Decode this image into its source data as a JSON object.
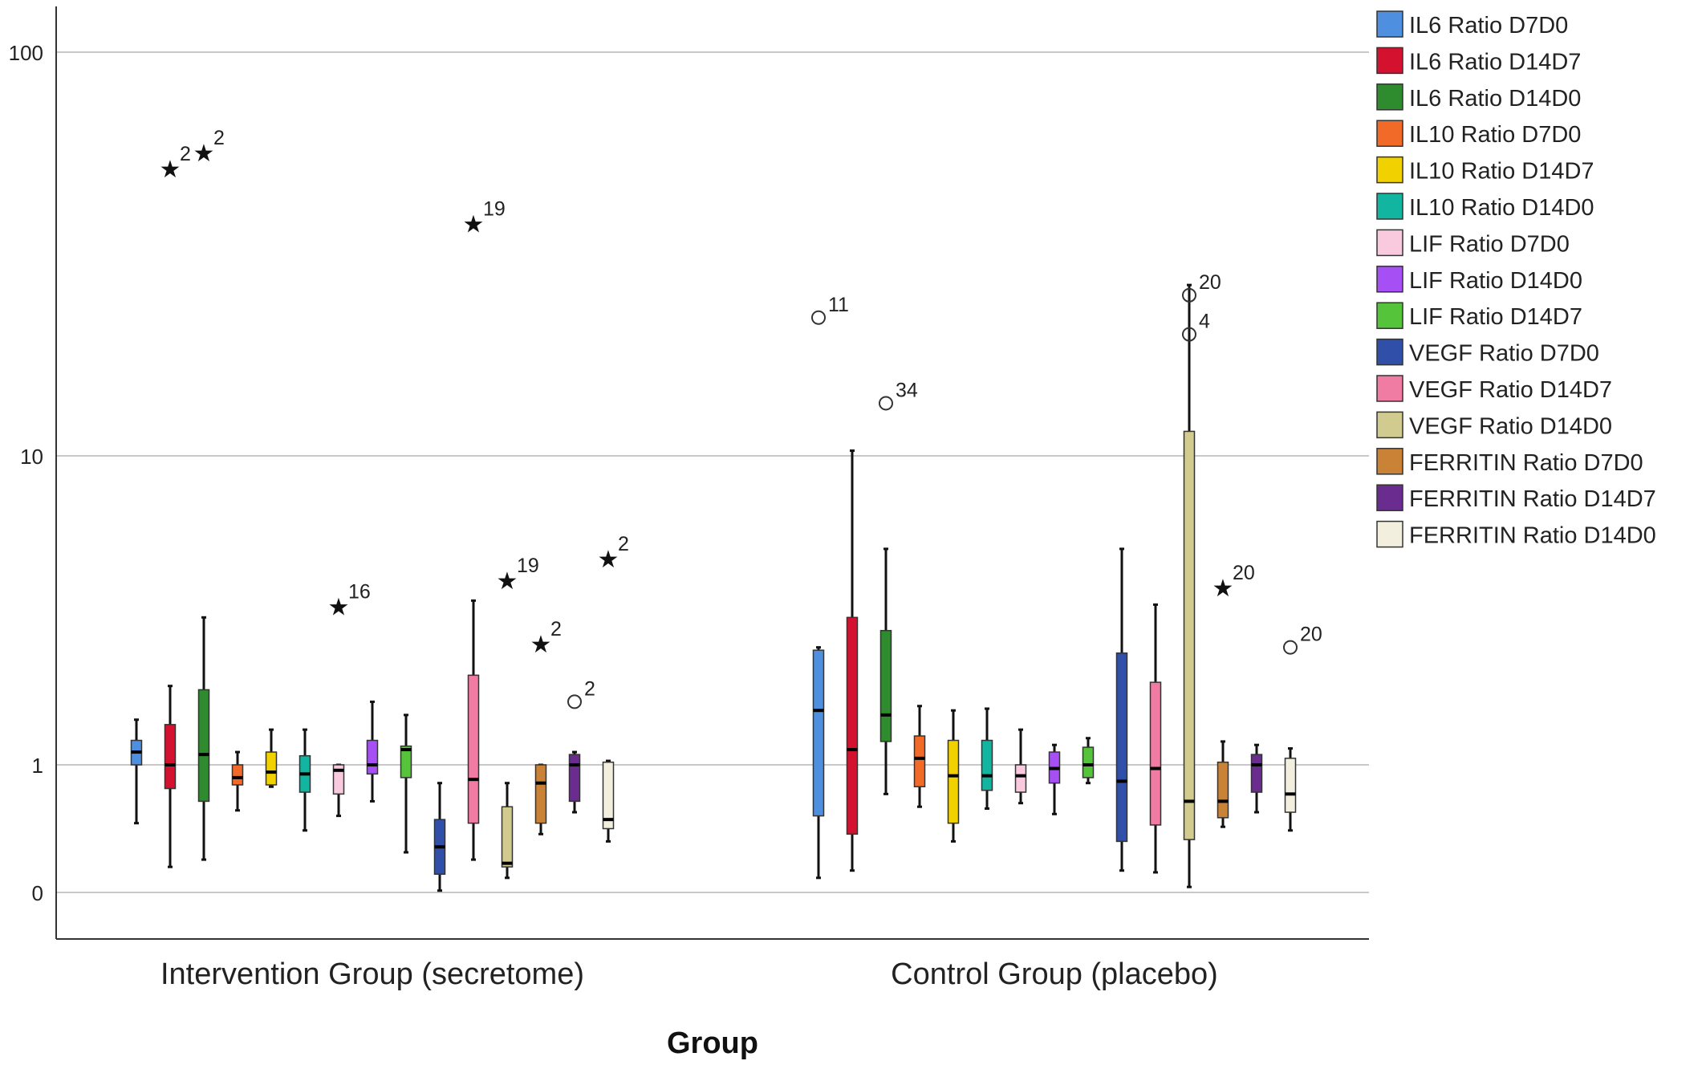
{
  "chart_data": {
    "type": "boxplot",
    "xlabel": "Group",
    "ylabel": "",
    "y_scale": "custom-log",
    "y_ticks": [
      {
        "label": "100",
        "value": 100
      },
      {
        "label": "10",
        "value": 10
      },
      {
        "label": "1",
        "value": 1
      },
      {
        "label": "0",
        "value": 0.3
      }
    ],
    "grid": "horizontal",
    "legend_placement": "right",
    "categories": [
      "Intervention Group (secretome)",
      "Control Group (placebo)"
    ],
    "series": [
      {
        "name": "IL6 Ratio D7D0",
        "color": "#4f8fe0",
        "boxes": [
          {
            "whisker_low": 0.68,
            "q1": 1.0,
            "median": 1.1,
            "q3": 1.2,
            "whisker_high": 1.4,
            "outliers": []
          },
          {
            "whisker_low": 0.38,
            "q1": 0.72,
            "median": 1.5,
            "q3": 2.35,
            "whisker_high": 2.4,
            "outliers": [
              {
                "value": 22,
                "marker": "circle",
                "label": "11"
              }
            ]
          }
        ]
      },
      {
        "name": "IL6 Ratio D14D7",
        "color": "#d4112f",
        "boxes": [
          {
            "whisker_low": 0.44,
            "q1": 0.87,
            "median": 1.0,
            "q3": 1.35,
            "whisker_high": 1.8,
            "outliers": [
              {
                "value": 52,
                "marker": "star",
                "label": "2"
              }
            ]
          },
          {
            "whisker_low": 0.42,
            "q1": 0.62,
            "median": 1.12,
            "q3": 3.0,
            "whisker_high": 10.3,
            "outliers": []
          }
        ]
      },
      {
        "name": "IL6 Ratio D14D0",
        "color": "#2e8b2e",
        "boxes": [
          {
            "whisker_low": 0.48,
            "q1": 0.8,
            "median": 1.08,
            "q3": 1.75,
            "whisker_high": 3.0,
            "outliers": [
              {
                "value": 57,
                "marker": "star",
                "label": "2"
              }
            ]
          },
          {
            "whisker_low": 0.84,
            "q1": 1.19,
            "median": 1.45,
            "q3": 2.72,
            "whisker_high": 5.0,
            "outliers": [
              {
                "value": 13.5,
                "marker": "circle",
                "label": "34"
              }
            ]
          }
        ]
      },
      {
        "name": "IL10 Ratio D7D0",
        "color": "#f26a28",
        "boxes": [
          {
            "whisker_low": 0.75,
            "q1": 0.89,
            "median": 0.93,
            "q3": 1.0,
            "whisker_high": 1.1,
            "outliers": []
          },
          {
            "whisker_low": 0.77,
            "q1": 0.88,
            "median": 1.05,
            "q3": 1.24,
            "whisker_high": 1.55,
            "outliers": []
          }
        ]
      },
      {
        "name": "IL10 Ratio D14D7",
        "color": "#f2d100",
        "boxes": [
          {
            "whisker_low": 0.88,
            "q1": 0.89,
            "median": 0.96,
            "q3": 1.1,
            "whisker_high": 1.3,
            "outliers": []
          },
          {
            "whisker_low": 0.58,
            "q1": 0.68,
            "median": 0.94,
            "q3": 1.2,
            "whisker_high": 1.5,
            "outliers": []
          }
        ]
      },
      {
        "name": "IL10 Ratio D14D0",
        "color": "#12b5a0",
        "boxes": [
          {
            "whisker_low": 0.64,
            "q1": 0.85,
            "median": 0.95,
            "q3": 1.07,
            "whisker_high": 1.3,
            "outliers": []
          },
          {
            "whisker_low": 0.76,
            "q1": 0.86,
            "median": 0.94,
            "q3": 1.2,
            "whisker_high": 1.52,
            "outliers": []
          }
        ]
      },
      {
        "name": "LIF Ratio D7D0",
        "color": "#f9c9de",
        "boxes": [
          {
            "whisker_low": 0.72,
            "q1": 0.84,
            "median": 0.97,
            "q3": 1.0,
            "whisker_high": 1.0,
            "outliers": [
              {
                "value": 3.3,
                "marker": "star",
                "label": "16"
              }
            ]
          },
          {
            "whisker_low": 0.79,
            "q1": 0.85,
            "median": 0.94,
            "q3": 1.0,
            "whisker_high": 1.3,
            "outliers": []
          }
        ]
      },
      {
        "name": "LIF Ratio D14D0",
        "color": "#a64ff5",
        "boxes": [
          {
            "whisker_low": 0.8,
            "q1": 0.95,
            "median": 1.0,
            "q3": 1.2,
            "whisker_high": 1.6,
            "outliers": []
          },
          {
            "whisker_low": 0.73,
            "q1": 0.9,
            "median": 0.98,
            "q3": 1.1,
            "whisker_high": 1.16,
            "outliers": []
          }
        ]
      },
      {
        "name": "LIF Ratio D14D7",
        "color": "#55c43a",
        "boxes": [
          {
            "whisker_low": 0.52,
            "q1": 0.93,
            "median": 1.12,
            "q3": 1.15,
            "whisker_high": 1.45,
            "outliers": []
          },
          {
            "whisker_low": 0.9,
            "q1": 0.93,
            "median": 1.0,
            "q3": 1.14,
            "whisker_high": 1.22,
            "outliers": []
          }
        ]
      },
      {
        "name": "VEGF Ratio D7D0",
        "color": "#2f4fa8",
        "boxes": [
          {
            "whisker_low": 0.31,
            "q1": 0.4,
            "median": 0.55,
            "q3": 0.7,
            "whisker_high": 0.9,
            "outliers": []
          },
          {
            "whisker_low": 0.42,
            "q1": 0.58,
            "median": 0.91,
            "q3": 2.3,
            "whisker_high": 5.0,
            "outliers": []
          }
        ]
      },
      {
        "name": "VEGF Ratio D14D7",
        "color": "#f07ba3",
        "boxes": [
          {
            "whisker_low": 0.48,
            "q1": 0.68,
            "median": 0.92,
            "q3": 1.95,
            "whisker_high": 3.4,
            "outliers": [
              {
                "value": 38,
                "marker": "star",
                "label": "19"
              }
            ]
          },
          {
            "whisker_low": 0.41,
            "q1": 0.67,
            "median": 0.98,
            "q3": 1.85,
            "whisker_high": 3.3,
            "outliers": []
          }
        ]
      },
      {
        "name": "VEGF Ratio D14D0",
        "color": "#d2cb8f",
        "boxes": [
          {
            "whisker_low": 0.38,
            "q1": 0.44,
            "median": 0.46,
            "q3": 0.77,
            "whisker_high": 0.9,
            "outliers": [
              {
                "value": 4.0,
                "marker": "star",
                "label": "19"
              }
            ]
          },
          {
            "whisker_low": 0.33,
            "q1": 0.59,
            "median": 0.8,
            "q3": 11.5,
            "whisker_high": 26.5,
            "outliers": [
              {
                "value": 25,
                "marker": "circle",
                "label": "20"
              },
              {
                "value": 20,
                "marker": "circle",
                "label": "4"
              }
            ]
          }
        ]
      },
      {
        "name": "FERRITIN Ratio D7D0",
        "color": "#c98236",
        "boxes": [
          {
            "whisker_low": 0.62,
            "q1": 0.68,
            "median": 0.9,
            "q3": 1.0,
            "whisker_high": 1.0,
            "outliers": [
              {
                "value": 2.5,
                "marker": "star",
                "label": "2"
              }
            ]
          },
          {
            "whisker_low": 0.66,
            "q1": 0.71,
            "median": 0.8,
            "q3": 1.02,
            "whisker_high": 1.19,
            "outliers": [
              {
                "value": 3.8,
                "marker": "star",
                "label": "20"
              }
            ]
          }
        ]
      },
      {
        "name": "FERRITIN Ratio D14D7",
        "color": "#6a2d8f",
        "boxes": [
          {
            "whisker_low": 0.74,
            "q1": 0.8,
            "median": 1.0,
            "q3": 1.08,
            "whisker_high": 1.1,
            "outliers": [
              {
                "value": 1.6,
                "marker": "circle",
                "label": "2"
              }
            ]
          },
          {
            "whisker_low": 0.74,
            "q1": 0.85,
            "median": 1.0,
            "q3": 1.08,
            "whisker_high": 1.16,
            "outliers": []
          }
        ]
      },
      {
        "name": "FERRITIN Ratio D14D0",
        "color": "#f2efdf",
        "boxes": [
          {
            "whisker_low": 0.58,
            "q1": 0.65,
            "median": 0.7,
            "q3": 1.02,
            "whisker_high": 1.03,
            "outliers": [
              {
                "value": 4.7,
                "marker": "star",
                "label": "2"
              }
            ]
          },
          {
            "whisker_low": 0.64,
            "q1": 0.74,
            "median": 0.84,
            "q3": 1.05,
            "whisker_high": 1.13,
            "outliers": [
              {
                "value": 2.4,
                "marker": "circle",
                "label": "20"
              }
            ]
          }
        ]
      }
    ]
  }
}
